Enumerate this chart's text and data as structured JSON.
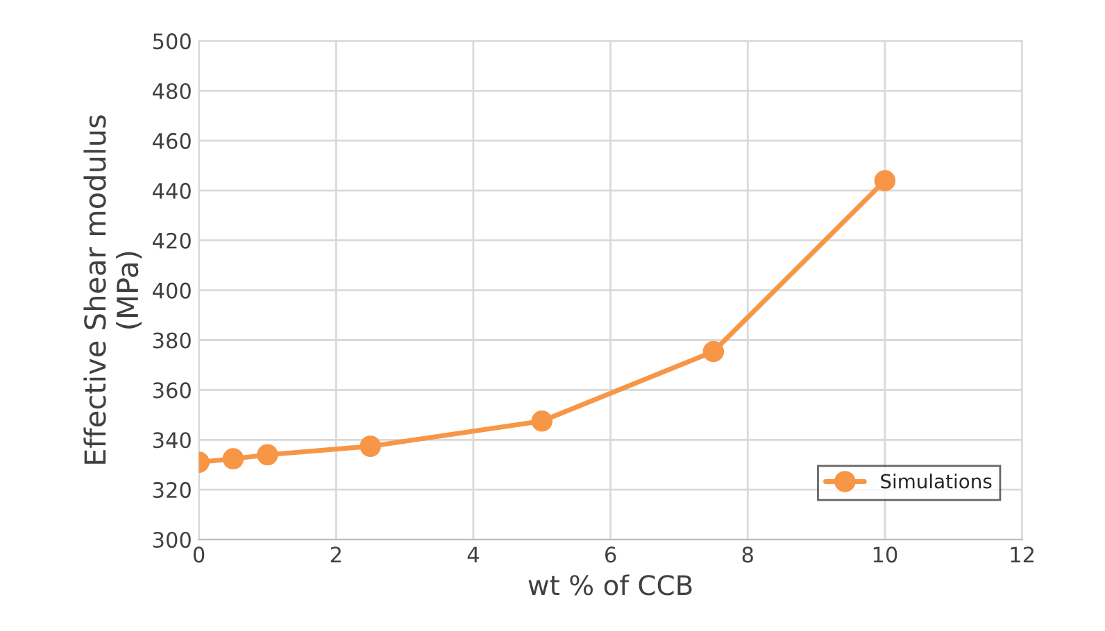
{
  "chart_data": {
    "type": "line",
    "xlabel": "wt % of CCB",
    "ylabel": "Effective Shear modulus\n(MPa)",
    "x": [
      0,
      0.5,
      1,
      2.5,
      5,
      7.5,
      10
    ],
    "series": [
      {
        "name": "Simulations",
        "color": "#f79646",
        "values": [
          331,
          332.4,
          334,
          337.4,
          347.5,
          375.4,
          444
        ]
      }
    ],
    "xlim": [
      0,
      12
    ],
    "xticks": [
      0,
      2,
      4,
      6,
      8,
      10,
      12
    ],
    "ylim": [
      300,
      500
    ],
    "yticks": [
      300,
      320,
      340,
      360,
      380,
      400,
      420,
      440,
      460,
      480,
      500
    ],
    "grid": true,
    "legend": "bottom right",
    "marker": "circle",
    "line_style": "solid"
  }
}
